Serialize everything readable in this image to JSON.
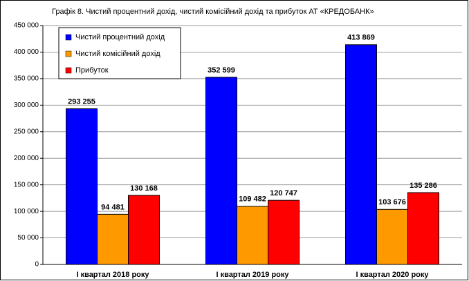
{
  "chart_data": {
    "type": "bar",
    "title": "Графік 8. Чистий процентний дохід, чистий комісійний дохід та прибуток АТ «КРЕДОБАНК»",
    "categories": [
      "I квартал 2018 року",
      "I квартал 2019 року",
      "I квартал 2020 року"
    ],
    "series": [
      {
        "name": "Чистий процентний дохід",
        "color": "#0000ff",
        "values": [
          293255,
          352599,
          413869
        ],
        "value_labels": [
          "293 255",
          "352 599",
          "413 869"
        ]
      },
      {
        "name": "Чистий комісійний дохід",
        "color": "#ff9900",
        "values": [
          94481,
          109482,
          103676
        ],
        "value_labels": [
          "94 481",
          "109 482",
          "103 676"
        ]
      },
      {
        "name": "Прибуток",
        "color": "#ff0000",
        "values": [
          130168,
          120747,
          135286
        ],
        "value_labels": [
          "130 168",
          "120 747",
          "135 286"
        ]
      }
    ],
    "ylim": [
      0,
      450000
    ],
    "yticks": [
      0,
      {
        "value": 50000,
        "label": "50 000"
      },
      {
        "value": 100000,
        "label": "100 000"
      },
      {
        "value": 150000,
        "label": "150 000"
      },
      {
        "value": 200000,
        "label": "200 000"
      },
      {
        "value": 250000,
        "label": "250 000"
      },
      {
        "value": 300000,
        "label": "300 000"
      },
      {
        "value": 350000,
        "label": "350 000"
      },
      {
        "value": 400000,
        "label": "400 000"
      },
      {
        "value": 450000,
        "label": "450 000"
      }
    ],
    "grid": true,
    "legend": "upper left"
  }
}
